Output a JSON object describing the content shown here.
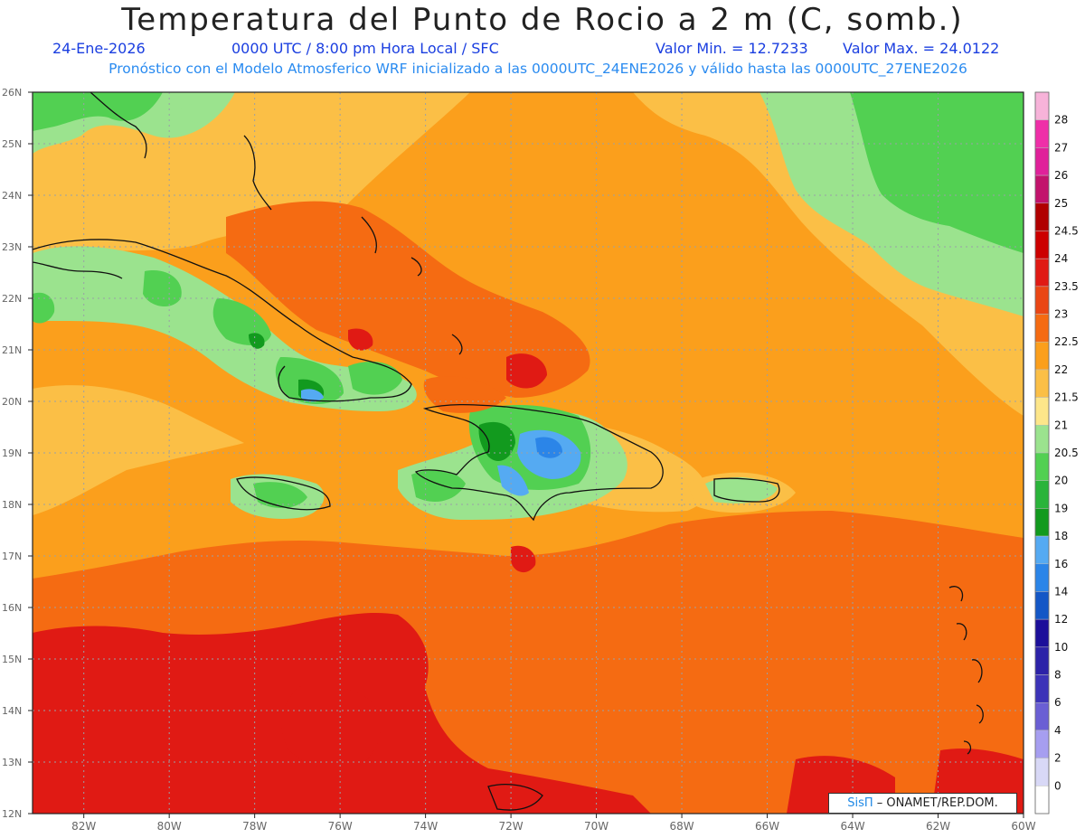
{
  "header": {
    "title": "Temperatura del Punto de Rocio a 2 m (C, somb.)",
    "date": "24-Ene-2026",
    "time_info": "0000 UTC / 8:00 pm Hora Local / SFC",
    "min_value": "Valor Min. = 12.7233",
    "max_value": "Valor Max. = 24.0122",
    "model_info": "Pronóstico con el Modelo Atmosferico WRF inicializado a las 0000UTC_24ENE2026 y válido hasta las  0000UTC_27ENE2026"
  },
  "map": {
    "lat_labels": [
      "26N",
      "25N",
      "24N",
      "23N",
      "22N",
      "21N",
      "20N",
      "19N",
      "18N",
      "17N",
      "16N",
      "15N",
      "14N",
      "13N",
      "12N"
    ],
    "lon_labels": [
      "82W",
      "80W",
      "78W",
      "76W",
      "74W",
      "72W",
      "70W",
      "68W",
      "66W",
      "64W",
      "62W",
      "60W"
    ],
    "extent": {
      "lat_min": 12,
      "lat_max": 26,
      "lon_min": -83.2,
      "lon_max": -60
    },
    "labelled_places": []
  },
  "legend": {
    "entries": [
      {
        "label": "28",
        "color": "#f7b3d9"
      },
      {
        "label": "27",
        "color": "#ef2fa8"
      },
      {
        "label": "26",
        "color": "#e0219a"
      },
      {
        "label": "25",
        "color": "#c2136c"
      },
      {
        "label": "24.5",
        "color": "#b00000"
      },
      {
        "label": "24",
        "color": "#cc0000"
      },
      {
        "label": "23.5",
        "color": "#e01a14"
      },
      {
        "label": "23",
        "color": "#ea4614"
      },
      {
        "label": "22.5",
        "color": "#f56b12"
      },
      {
        "label": "22",
        "color": "#fb9f1c"
      },
      {
        "label": "21.5",
        "color": "#fbbf46"
      },
      {
        "label": "21",
        "color": "#fde68a"
      },
      {
        "label": "20.5",
        "color": "#9be38e"
      },
      {
        "label": "20",
        "color": "#52d052"
      },
      {
        "label": "19",
        "color": "#2ab43a"
      },
      {
        "label": "18",
        "color": "#129a1e"
      },
      {
        "label": "16",
        "color": "#55aaf2"
      },
      {
        "label": "14",
        "color": "#2b85e8"
      },
      {
        "label": "12",
        "color": "#1457c6"
      },
      {
        "label": "10",
        "color": "#1c0f9a"
      },
      {
        "label": "8",
        "color": "#2c22a8"
      },
      {
        "label": "6",
        "color": "#3c33b8"
      },
      {
        "label": "4",
        "color": "#6a5fd4"
      },
      {
        "label": "2",
        "color": "#a69ef0"
      },
      {
        "label": "0",
        "color": "#d8d8f6"
      },
      {
        "label": "",
        "color": "#ffffff"
      }
    ]
  },
  "credit": {
    "brand": "SisΠ",
    "text": " – ONAMET/REP.DOM."
  }
}
